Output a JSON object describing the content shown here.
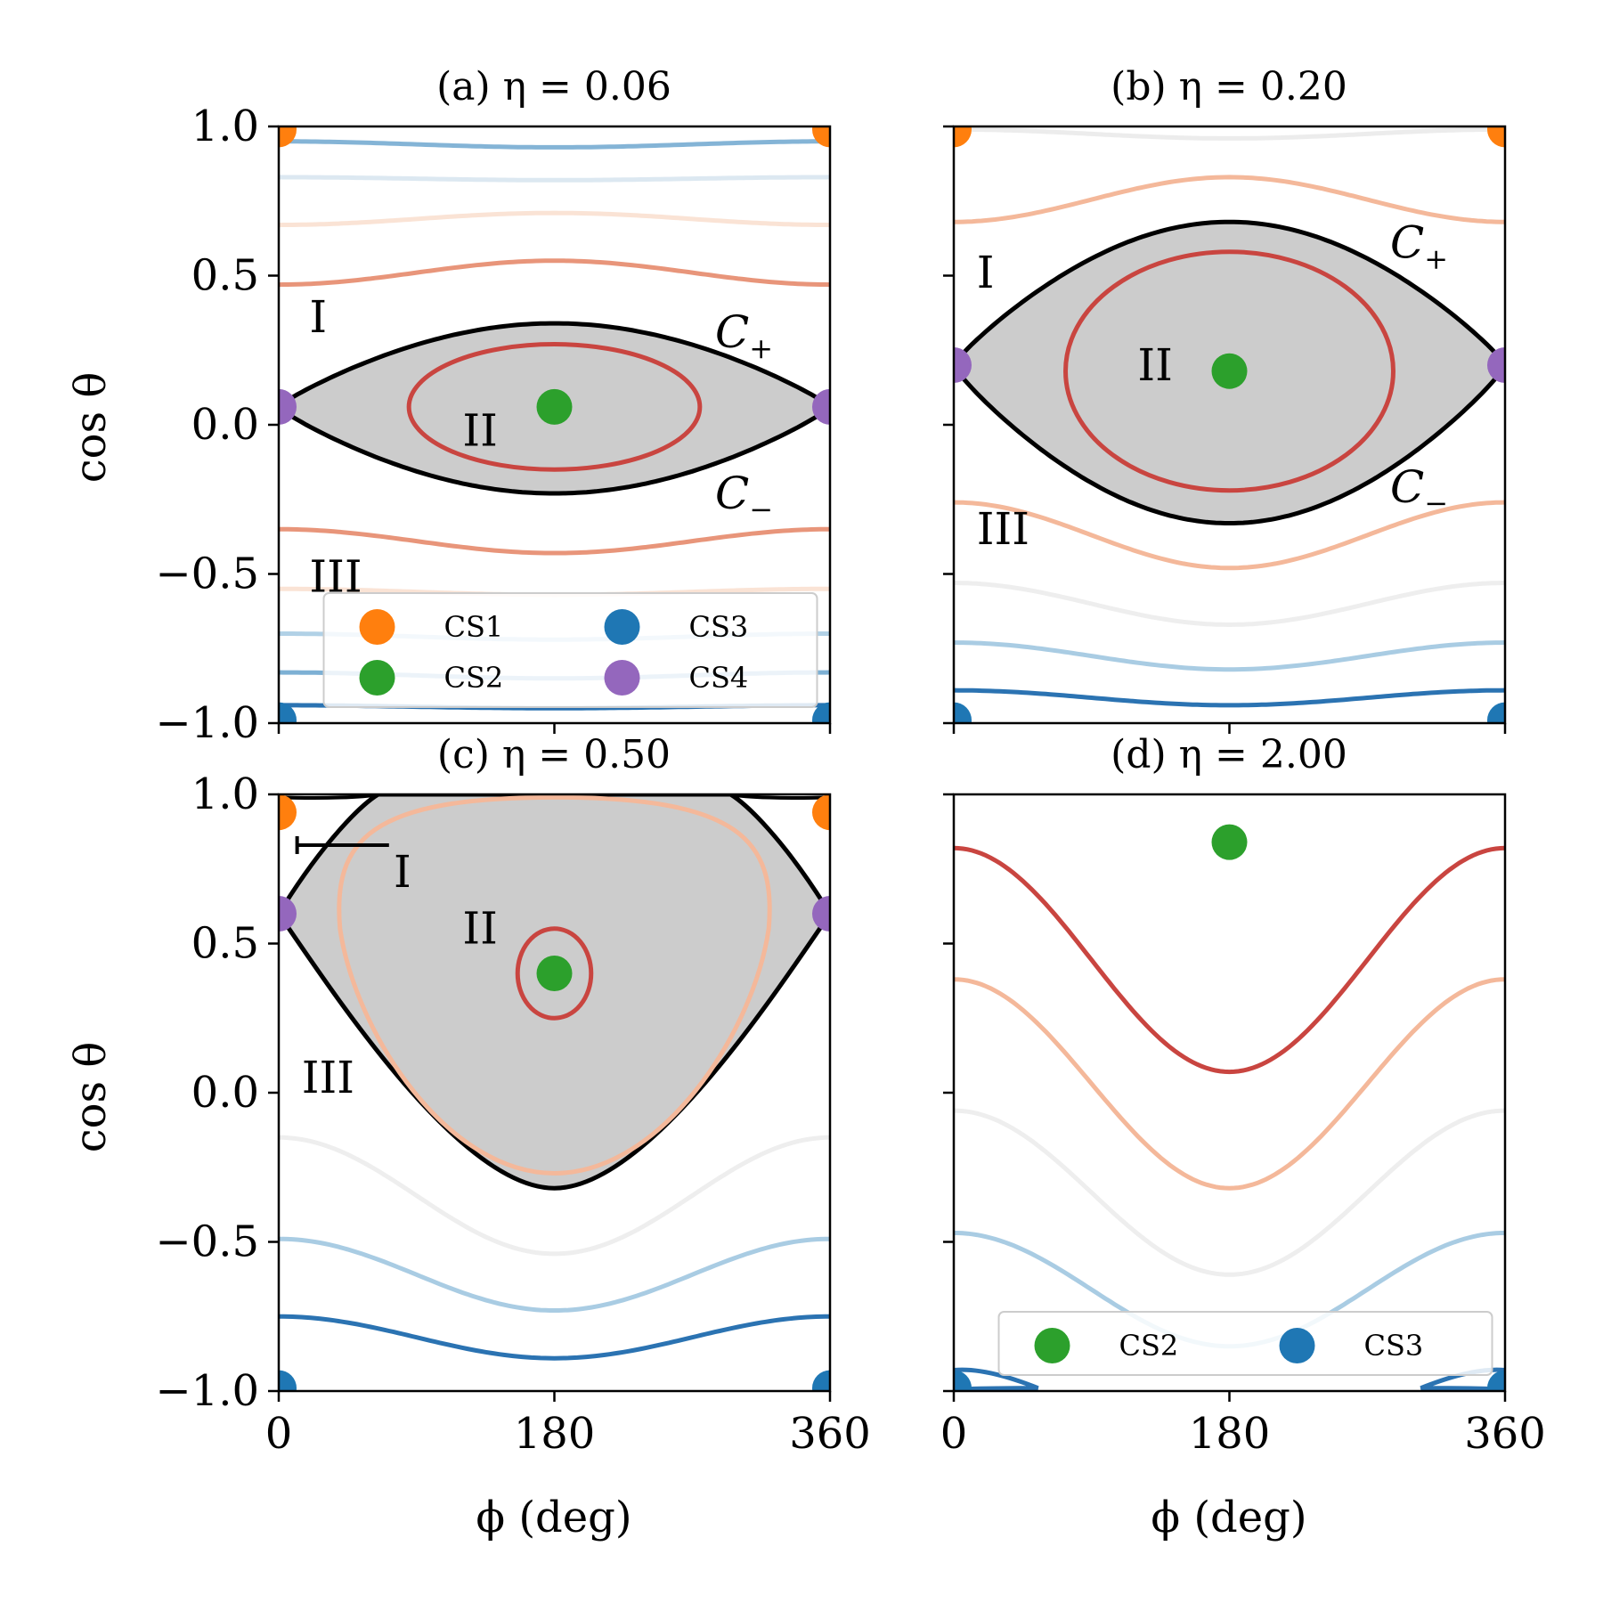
{
  "figure": {
    "ylabel": "cos θ",
    "xlabel": "ϕ (deg)"
  },
  "colors": {
    "cs1": "#ff7f0e",
    "cs2": "#2ca02c",
    "cs3": "#1f77b4",
    "cs4": "#9467bd",
    "separatrix": "#000000",
    "fill": "#cccccc"
  },
  "chart_data": [
    {
      "type": "line",
      "title": "(a) η = 0.06",
      "xlabel": "",
      "ylabel": "cos θ",
      "xlim": [
        0,
        360
      ],
      "ylim": [
        -1,
        1
      ],
      "xticks": [
        0,
        180,
        360
      ],
      "yticks": [
        -1.0,
        -0.5,
        0.0,
        0.5,
        1.0
      ],
      "ytick_labels": [
        "−1.0",
        "−0.5",
        "0.0",
        "0.5",
        "1.0"
      ],
      "xtick_labels": [],
      "separatrix": {
        "upper": [
          0.06,
          0.34
        ],
        "lower": [
          0.06,
          -0.23
        ],
        "cusp_x": [
          0,
          360
        ]
      },
      "series": [
        {
          "name": "upper-1",
          "color": "#6fa7cf",
          "opacity": 0.85,
          "x": [
            0,
            180,
            360
          ],
          "y": [
            0.95,
            0.93,
            0.95
          ]
        },
        {
          "name": "upper-2",
          "color": "#d8e6f0",
          "opacity": 0.9,
          "x": [
            0,
            180,
            360
          ],
          "y": [
            0.83,
            0.82,
            0.83
          ]
        },
        {
          "name": "upper-3",
          "color": "#f9e0d0",
          "opacity": 0.9,
          "x": [
            0,
            180,
            360
          ],
          "y": [
            0.67,
            0.71,
            0.67
          ]
        },
        {
          "name": "upper-4",
          "color": "#e8957a",
          "opacity": 1,
          "x": [
            0,
            180,
            360
          ],
          "y": [
            0.47,
            0.55,
            0.47
          ]
        },
        {
          "name": "inner",
          "color": "#c94540",
          "closed": true,
          "center": [
            180,
            0.06
          ],
          "rx": 95,
          "ry": 0.21
        },
        {
          "name": "lower-1",
          "color": "#e8957a",
          "opacity": 1,
          "x": [
            0,
            180,
            360
          ],
          "y": [
            -0.35,
            -0.43,
            -0.35
          ]
        },
        {
          "name": "lower-2",
          "color": "#f9e0d0",
          "opacity": 0.9,
          "x": [
            0,
            180,
            360
          ],
          "y": [
            -0.55,
            -0.57,
            -0.55
          ]
        },
        {
          "name": "lower-3",
          "color": "#a9cce3",
          "opacity": 0.9,
          "x": [
            0,
            180,
            360
          ],
          "y": [
            -0.7,
            -0.72,
            -0.7
          ]
        },
        {
          "name": "lower-4",
          "color": "#6fa7cf",
          "opacity": 0.9,
          "x": [
            0,
            180,
            360
          ],
          "y": [
            -0.83,
            -0.85,
            -0.83
          ]
        },
        {
          "name": "lower-5",
          "color": "#2b73b2",
          "opacity": 1,
          "x": [
            0,
            180,
            360
          ],
          "y": [
            -0.94,
            -0.95,
            -0.94
          ]
        }
      ],
      "points": [
        {
          "name": "CS1",
          "color": "#ff7f0e",
          "xy": [
            [
              0,
              0.99
            ],
            [
              360,
              0.99
            ]
          ]
        },
        {
          "name": "CS2",
          "color": "#2ca02c",
          "xy": [
            [
              180,
              0.06
            ]
          ]
        },
        {
          "name": "CS3",
          "color": "#1f77b4",
          "xy": [
            [
              0,
              -0.99
            ],
            [
              360,
              -0.99
            ]
          ]
        },
        {
          "name": "CS4",
          "color": "#9467bd",
          "xy": [
            [
              0,
              0.06
            ],
            [
              360,
              0.06
            ]
          ]
        }
      ],
      "regions": [
        {
          "label": "I",
          "x": 20,
          "y": 0.31
        },
        {
          "label": "II",
          "x": 120,
          "y": -0.07
        },
        {
          "label": "III",
          "x": 20,
          "y": -0.56
        }
      ],
      "curve_labels": [
        {
          "label": "C",
          "sub": "+",
          "x": 285,
          "y": 0.26
        },
        {
          "label": "C",
          "sub": "−",
          "x": 285,
          "y": -0.28
        }
      ],
      "legend": {
        "position": "lower-center",
        "entries": [
          {
            "name": "CS1",
            "color": "#ff7f0e"
          },
          {
            "name": "CS2",
            "color": "#2ca02c"
          },
          {
            "name": "CS3",
            "color": "#1f77b4"
          },
          {
            "name": "CS4",
            "color": "#9467bd"
          }
        ]
      }
    },
    {
      "type": "line",
      "title": "(b) η = 0.20",
      "xlabel": "",
      "ylabel": "",
      "xlim": [
        0,
        360
      ],
      "ylim": [
        -1,
        1
      ],
      "xticks": [
        0,
        180,
        360
      ],
      "yticks": [
        -1.0,
        -0.5,
        0.0,
        0.5,
        1.0
      ],
      "ytick_labels": [],
      "xtick_labels": [],
      "separatrix": {
        "upper": [
          0.2,
          0.68
        ],
        "lower": [
          0.2,
          -0.33
        ],
        "cusp_x": [
          0,
          360
        ]
      },
      "series": [
        {
          "name": "upper-1",
          "color": "#ececec",
          "opacity": 1,
          "x": [
            0,
            180,
            360
          ],
          "y": [
            0.99,
            0.96,
            0.99
          ]
        },
        {
          "name": "upper-2",
          "color": "#f4b89a",
          "opacity": 1,
          "x": [
            0,
            180,
            360
          ],
          "y": [
            0.68,
            0.83,
            0.68
          ]
        },
        {
          "name": "inner",
          "color": "#c94540",
          "closed": true,
          "center": [
            180,
            0.18
          ],
          "rx": 107,
          "ry": 0.4
        },
        {
          "name": "lower-1",
          "color": "#f4b89a",
          "opacity": 1,
          "x": [
            0,
            180,
            360
          ],
          "y": [
            -0.26,
            -0.48,
            -0.26
          ]
        },
        {
          "name": "lower-2",
          "color": "#eeeeee",
          "opacity": 1,
          "x": [
            0,
            180,
            360
          ],
          "y": [
            -0.53,
            -0.67,
            -0.53
          ]
        },
        {
          "name": "lower-3",
          "color": "#a9cce3",
          "opacity": 1,
          "x": [
            0,
            180,
            360
          ],
          "y": [
            -0.73,
            -0.82,
            -0.73
          ]
        },
        {
          "name": "lower-4",
          "color": "#2b73b2",
          "opacity": 1,
          "x": [
            0,
            180,
            360
          ],
          "y": [
            -0.89,
            -0.94,
            -0.89
          ]
        }
      ],
      "points": [
        {
          "name": "CS1",
          "color": "#ff7f0e",
          "xy": [
            [
              0,
              0.99
            ],
            [
              360,
              0.99
            ]
          ]
        },
        {
          "name": "CS2",
          "color": "#2ca02c",
          "xy": [
            [
              180,
              0.18
            ]
          ]
        },
        {
          "name": "CS3",
          "color": "#1f77b4",
          "xy": [
            [
              0,
              -0.99
            ],
            [
              360,
              -0.99
            ]
          ]
        },
        {
          "name": "CS4",
          "color": "#9467bd",
          "xy": [
            [
              0,
              0.2
            ],
            [
              360,
              0.2
            ]
          ]
        }
      ],
      "regions": [
        {
          "label": "I",
          "x": 15,
          "y": 0.46
        },
        {
          "label": "II",
          "x": 120,
          "y": 0.15
        },
        {
          "label": "III",
          "x": 15,
          "y": -0.4
        }
      ],
      "curve_labels": [
        {
          "label": "C",
          "sub": "+",
          "x": 285,
          "y": 0.56
        },
        {
          "label": "C",
          "sub": "−",
          "x": 285,
          "y": -0.26
        }
      ]
    },
    {
      "type": "line",
      "title": "(c) η = 0.50",
      "xlabel": "ϕ (deg)",
      "ylabel": "cos θ",
      "xlim": [
        0,
        360
      ],
      "ylim": [
        -1,
        1
      ],
      "xticks": [
        0,
        180,
        360
      ],
      "yticks": [
        -1.0,
        -0.5,
        0.0,
        0.5,
        1.0
      ],
      "ytick_labels": [
        "−1.0",
        "−0.5",
        "0.0",
        "0.5",
        "1.0"
      ],
      "xtick_labels": [
        "0",
        "180",
        "360"
      ],
      "separatrix": {
        "cusp": 0.6,
        "bottom": -0.32,
        "top": 1.0,
        "cs1": 0.94
      },
      "series": [
        {
          "name": "inner-peach",
          "color": "#f4b89a",
          "closed": true,
          "kind": "rounded-tri",
          "top": 0.99,
          "bottom": -0.27,
          "width": 140
        },
        {
          "name": "inner",
          "color": "#c94540",
          "closed": true,
          "center": [
            180,
            0.4
          ],
          "rx": 24,
          "ry": 0.15
        },
        {
          "name": "lower-1",
          "color": "#eeeeee",
          "opacity": 1,
          "x": [
            0,
            180,
            360
          ],
          "y": [
            -0.15,
            -0.54,
            -0.15
          ]
        },
        {
          "name": "lower-2",
          "color": "#a9cce3",
          "opacity": 1,
          "x": [
            0,
            180,
            360
          ],
          "y": [
            -0.49,
            -0.73,
            -0.49
          ]
        },
        {
          "name": "lower-3",
          "color": "#2b73b2",
          "opacity": 1,
          "x": [
            0,
            180,
            360
          ],
          "y": [
            -0.75,
            -0.89,
            -0.75
          ]
        }
      ],
      "points": [
        {
          "name": "CS1",
          "color": "#ff7f0e",
          "xy": [
            [
              0,
              0.94
            ],
            [
              360,
              0.94
            ]
          ]
        },
        {
          "name": "CS2",
          "color": "#2ca02c",
          "xy": [
            [
              180,
              0.4
            ]
          ]
        },
        {
          "name": "CS3",
          "color": "#1f77b4",
          "xy": [
            [
              0,
              -0.99
            ],
            [
              360,
              -0.99
            ]
          ]
        },
        {
          "name": "CS4",
          "color": "#9467bd",
          "xy": [
            [
              0,
              0.6
            ],
            [
              360,
              0.6
            ]
          ]
        }
      ],
      "regions": [
        {
          "label": "I",
          "x": 75,
          "y": 0.69
        },
        {
          "label": "II",
          "x": 120,
          "y": 0.5
        },
        {
          "label": "III",
          "x": 15,
          "y": 0.0
        }
      ],
      "error_bar": {
        "x_from": 12,
        "x_to": 72,
        "y": 0.83
      }
    },
    {
      "type": "line",
      "title": "(d) η = 2.00",
      "xlabel": "ϕ (deg)",
      "ylabel": "",
      "xlim": [
        0,
        360
      ],
      "ylim": [
        -1,
        1
      ],
      "xticks": [
        0,
        180,
        360
      ],
      "yticks": [
        -1.0,
        -0.5,
        0.0,
        0.5,
        1.0
      ],
      "ytick_labels": [],
      "xtick_labels": [
        "0",
        "180",
        "360"
      ],
      "series": [
        {
          "name": "line-1",
          "color": "#c94540",
          "opacity": 1,
          "x": [
            0,
            180,
            360
          ],
          "y": [
            0.82,
            0.07,
            0.82
          ]
        },
        {
          "name": "line-2",
          "color": "#f4b89a",
          "opacity": 1,
          "x": [
            0,
            180,
            360
          ],
          "y": [
            0.38,
            -0.32,
            0.38
          ]
        },
        {
          "name": "line-3",
          "color": "#eeeeee",
          "opacity": 1,
          "x": [
            0,
            180,
            360
          ],
          "y": [
            -0.06,
            -0.61,
            -0.06
          ]
        },
        {
          "name": "line-4",
          "color": "#a9cce3",
          "opacity": 1,
          "x": [
            0,
            180,
            360
          ],
          "y": [
            -0.47,
            -0.85,
            -0.47
          ]
        }
      ],
      "loops": [
        {
          "name": "cs3-loop-left",
          "color": "#2b73b2",
          "side": "left"
        },
        {
          "name": "cs3-loop-right",
          "color": "#2b73b2",
          "side": "right"
        }
      ],
      "points": [
        {
          "name": "CS2",
          "color": "#2ca02c",
          "xy": [
            [
              180,
              0.84
            ]
          ]
        },
        {
          "name": "CS3",
          "color": "#1f77b4",
          "xy": [
            [
              0,
              -0.99
            ],
            [
              360,
              -0.99
            ]
          ]
        }
      ],
      "legend": {
        "position": "lower-center",
        "entries": [
          {
            "name": "CS2",
            "color": "#2ca02c"
          },
          {
            "name": "CS3",
            "color": "#1f77b4"
          }
        ]
      }
    }
  ]
}
